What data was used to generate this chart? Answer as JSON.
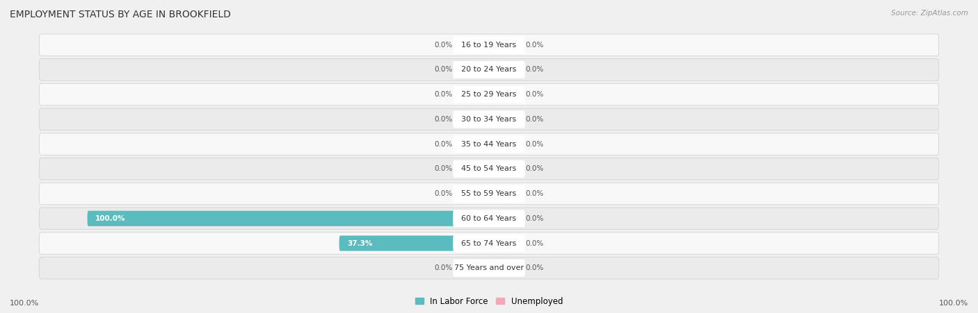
{
  "title": "EMPLOYMENT STATUS BY AGE IN BROOKFIELD",
  "source": "Source: ZipAtlas.com",
  "categories": [
    "16 to 19 Years",
    "20 to 24 Years",
    "25 to 29 Years",
    "30 to 34 Years",
    "35 to 44 Years",
    "45 to 54 Years",
    "55 to 59 Years",
    "60 to 64 Years",
    "65 to 74 Years",
    "75 Years and over"
  ],
  "labor_force": [
    0.0,
    0.0,
    0.0,
    0.0,
    0.0,
    0.0,
    0.0,
    100.0,
    37.3,
    0.0
  ],
  "unemployed": [
    0.0,
    0.0,
    0.0,
    0.0,
    0.0,
    0.0,
    0.0,
    0.0,
    0.0,
    0.0
  ],
  "labor_force_color": "#5bbcbf",
  "unemployed_color": "#f4a7b9",
  "stub_labor_color": "#a8d8da",
  "stub_unemployed_color": "#f9cdd8",
  "background_color": "#f0f0f0",
  "row_odd_color": "#ebebeb",
  "row_even_color": "#f8f8f8",
  "title_fontsize": 10,
  "label_fontsize": 8,
  "value_fontsize": 7.5,
  "axis_max": 100.0,
  "min_stub": 8.0,
  "legend_label_force": "In Labor Force",
  "legend_label_unemployed": "Unemployed",
  "x_left_label": "100.0%",
  "x_right_label": "100.0%"
}
